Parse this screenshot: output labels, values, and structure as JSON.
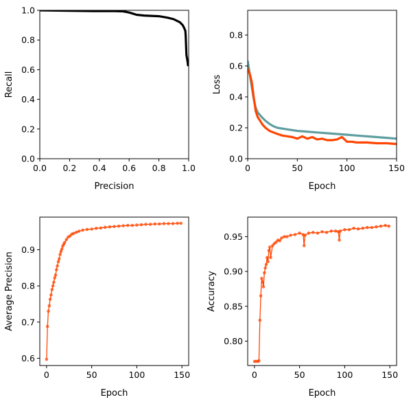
{
  "chart_data": [
    {
      "type": "line",
      "id": "pr",
      "xlabel": "Precision",
      "ylabel": "Recall",
      "xlim": [
        0.0,
        1.0
      ],
      "ylim": [
        0.0,
        1.0
      ],
      "xticks": [
        0.0,
        0.2,
        0.4,
        0.6,
        0.8,
        1.0
      ],
      "yticks": [
        0.0,
        0.2,
        0.4,
        0.6,
        0.8,
        1.0
      ],
      "tick_format": 1,
      "series": [
        {
          "color": "#000000",
          "markers": false,
          "x": [
            0.0,
            0.36,
            0.5,
            0.56,
            0.6,
            0.65,
            0.7,
            0.8,
            0.86,
            0.9,
            0.94,
            0.96,
            0.97,
            0.978,
            0.98,
            0.983,
            0.985,
            0.99,
            0.993,
            0.995
          ],
          "y": [
            1.0,
            0.995,
            0.995,
            0.993,
            0.985,
            0.97,
            0.965,
            0.96,
            0.95,
            0.94,
            0.92,
            0.9,
            0.88,
            0.86,
            0.82,
            0.75,
            0.7,
            0.67,
            0.65,
            0.63
          ]
        }
      ]
    },
    {
      "type": "line",
      "id": "loss",
      "xlabel": "Epoch",
      "ylabel": "Loss",
      "xlim": [
        0,
        150
      ],
      "ylim": [
        0.0,
        0.96
      ],
      "xticks": [
        0,
        50,
        100,
        150
      ],
      "yticks": [
        0.0,
        0.2,
        0.4,
        0.6,
        0.8
      ],
      "tick_format": 1,
      "series": [
        {
          "color": "#5f9ea0",
          "markers": false,
          "x": [
            0,
            2,
            4,
            6,
            8,
            10,
            14,
            18,
            22,
            26,
            30,
            40,
            50,
            60,
            70,
            80,
            90,
            100,
            110,
            120,
            130,
            140,
            150
          ],
          "y": [
            0.63,
            0.55,
            0.47,
            0.39,
            0.33,
            0.3,
            0.27,
            0.245,
            0.225,
            0.21,
            0.2,
            0.19,
            0.18,
            0.175,
            0.17,
            0.165,
            0.16,
            0.155,
            0.15,
            0.145,
            0.14,
            0.135,
            0.13
          ]
        },
        {
          "color": "#ff4500",
          "markers": false,
          "x": [
            0,
            2,
            4,
            6,
            8,
            10,
            12,
            15,
            18,
            22,
            26,
            30,
            35,
            40,
            45,
            50,
            55,
            60,
            65,
            70,
            75,
            80,
            85,
            90,
            95,
            100,
            105,
            110,
            120,
            130,
            140,
            150
          ],
          "y": [
            0.58,
            0.55,
            0.5,
            0.4,
            0.31,
            0.27,
            0.25,
            0.22,
            0.2,
            0.18,
            0.17,
            0.16,
            0.15,
            0.145,
            0.14,
            0.13,
            0.145,
            0.13,
            0.14,
            0.125,
            0.13,
            0.12,
            0.12,
            0.125,
            0.14,
            0.11,
            0.11,
            0.105,
            0.105,
            0.1,
            0.1,
            0.095
          ]
        }
      ]
    },
    {
      "type": "line",
      "id": "ap",
      "xlabel": "Epoch",
      "ylabel": "Average Precision",
      "xlim": [
        -7.5,
        157.5
      ],
      "ylim": [
        0.58,
        0.99
      ],
      "xticks": [
        0,
        50,
        100,
        150
      ],
      "yticks": [
        0.6,
        0.7,
        0.8,
        0.9
      ],
      "tick_format": 1,
      "series": [
        {
          "color": "#ff4500",
          "markers": true,
          "x": [
            0,
            1,
            2,
            3,
            4,
            5,
            6,
            7,
            8,
            9,
            10,
            11,
            12,
            13,
            14,
            15,
            16,
            17,
            18,
            19,
            20,
            22,
            24,
            26,
            28,
            30,
            33,
            36,
            40,
            45,
            50,
            55,
            60,
            65,
            70,
            75,
            80,
            85,
            90,
            95,
            100,
            105,
            110,
            115,
            120,
            125,
            130,
            135,
            140,
            145,
            149
          ],
          "y": [
            0.597,
            0.688,
            0.73,
            0.745,
            0.763,
            0.775,
            0.79,
            0.8,
            0.81,
            0.822,
            0.83,
            0.845,
            0.855,
            0.867,
            0.875,
            0.887,
            0.895,
            0.902,
            0.91,
            0.915,
            0.92,
            0.928,
            0.935,
            0.938,
            0.943,
            0.945,
            0.948,
            0.951,
            0.954,
            0.956,
            0.957,
            0.959,
            0.96,
            0.962,
            0.963,
            0.964,
            0.965,
            0.966,
            0.967,
            0.967,
            0.968,
            0.969,
            0.97,
            0.97,
            0.971,
            0.971,
            0.972,
            0.972,
            0.972,
            0.973,
            0.973
          ]
        }
      ]
    },
    {
      "type": "line",
      "id": "acc",
      "xlabel": "Epoch",
      "ylabel": "Accuracy",
      "xlim": [
        -7.5,
        157.5
      ],
      "ylim": [
        0.765,
        0.978
      ],
      "xticks": [
        0,
        50,
        100,
        150
      ],
      "yticks": [
        0.8,
        0.85,
        0.9,
        0.95
      ],
      "tick_format": 2,
      "series": [
        {
          "color": "#ff4500",
          "markers": true,
          "x": [
            0,
            2,
            4,
            5,
            6,
            7,
            8,
            9,
            10,
            11,
            12,
            13,
            14,
            15,
            16,
            17,
            18,
            20,
            22,
            24,
            26,
            28,
            30,
            33,
            36,
            40,
            45,
            50,
            54,
            55,
            56,
            60,
            65,
            70,
            75,
            80,
            85,
            90,
            93,
            94,
            95,
            100,
            105,
            110,
            115,
            120,
            125,
            130,
            135,
            140,
            145,
            149
          ],
          "y": [
            0.771,
            0.771,
            0.771,
            0.772,
            0.83,
            0.865,
            0.89,
            0.885,
            0.878,
            0.898,
            0.905,
            0.91,
            0.92,
            0.914,
            0.93,
            0.935,
            0.92,
            0.937,
            0.94,
            0.942,
            0.945,
            0.944,
            0.948,
            0.95,
            0.95,
            0.952,
            0.953,
            0.955,
            0.953,
            0.937,
            0.952,
            0.955,
            0.956,
            0.955,
            0.957,
            0.956,
            0.958,
            0.958,
            0.957,
            0.945,
            0.958,
            0.96,
            0.96,
            0.962,
            0.961,
            0.962,
            0.963,
            0.963,
            0.964,
            0.965,
            0.966,
            0.965
          ]
        }
      ]
    }
  ]
}
